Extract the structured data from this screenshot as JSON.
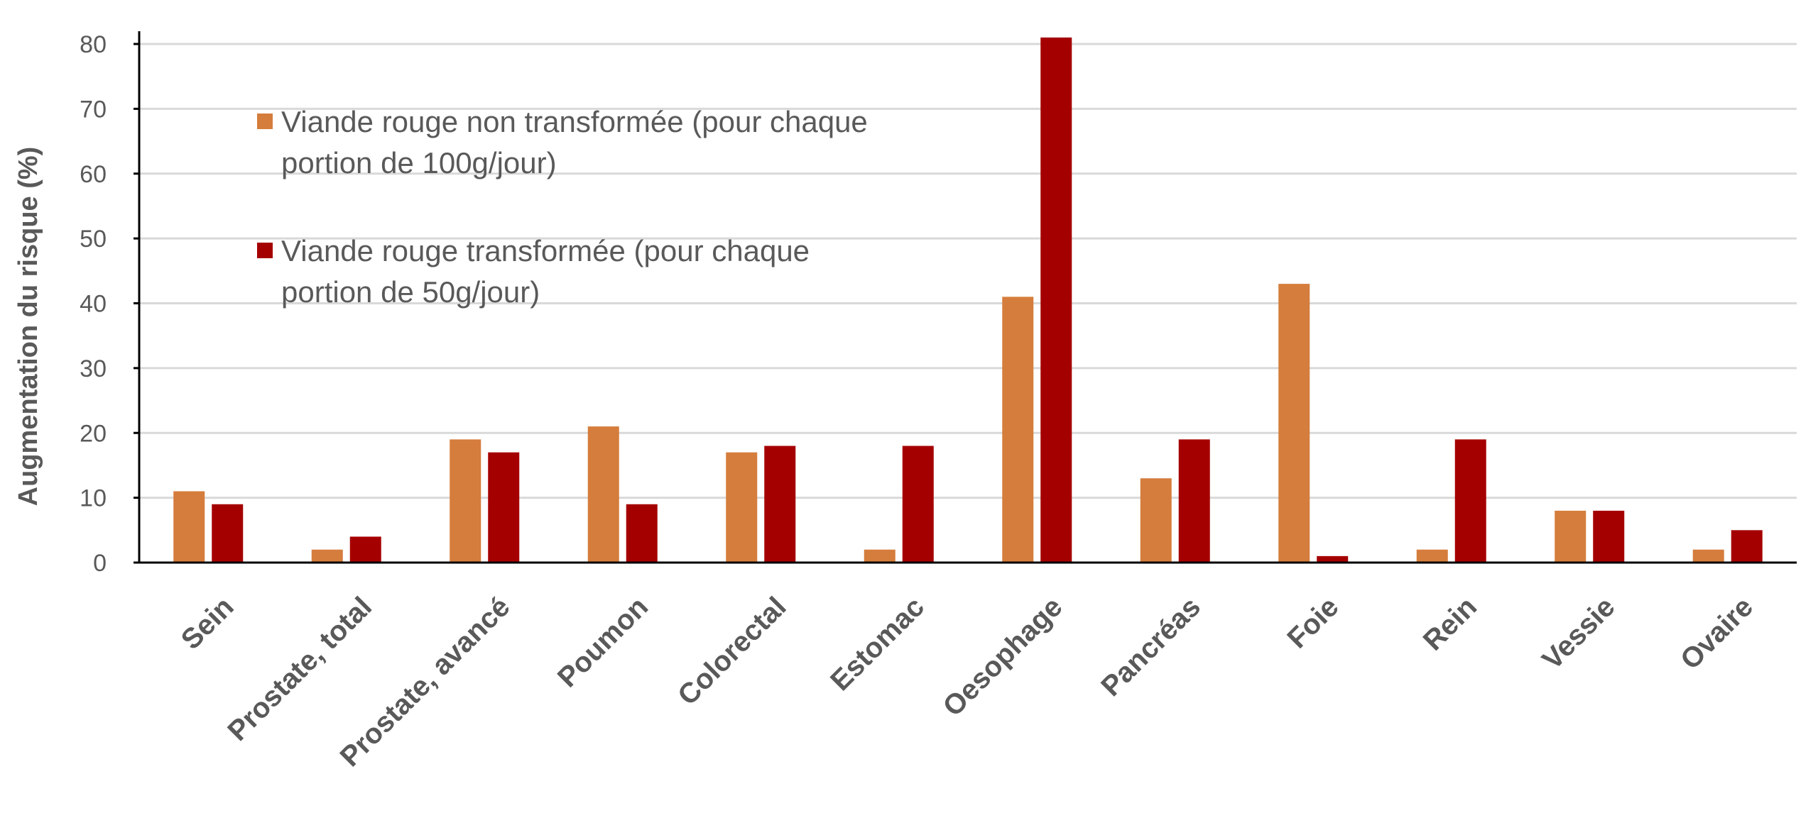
{
  "chart_data": {
    "type": "bar",
    "title": "",
    "xlabel": "",
    "ylabel": "Augmentation du risque (%)",
    "ylim": [
      0,
      80
    ],
    "yticks": [
      0,
      10,
      20,
      30,
      40,
      50,
      60,
      70,
      80
    ],
    "grid": true,
    "legend_position": "top-left",
    "categories": [
      "Sein",
      "Prostate, total",
      "Prostate, avancé",
      "Poumon",
      "Colorectal",
      "Estomac",
      "Oesophage",
      "Pancréas",
      "Foie",
      "Rein",
      "Vessie",
      "Ovaire"
    ],
    "series": [
      {
        "name": "Viande rouge non transformée (pour chaque portion de 100g/jour)",
        "legend_lines": [
          "Viande rouge non transformée (pour chaque",
          "portion de 100g/jour)"
        ],
        "color": "#D57D3C",
        "values": [
          11,
          2,
          19,
          21,
          17,
          2,
          41,
          13,
          43,
          2,
          8,
          2
        ]
      },
      {
        "name": "Viande rouge transformée (pour chaque portion de 50g/jour)",
        "legend_lines": [
          "Viande rouge transformée (pour chaque",
          "portion de 50g/jour)"
        ],
        "color": "#A50000",
        "values": [
          9,
          4,
          17,
          9,
          18,
          18,
          81,
          19,
          1,
          19,
          8,
          5
        ]
      }
    ]
  }
}
